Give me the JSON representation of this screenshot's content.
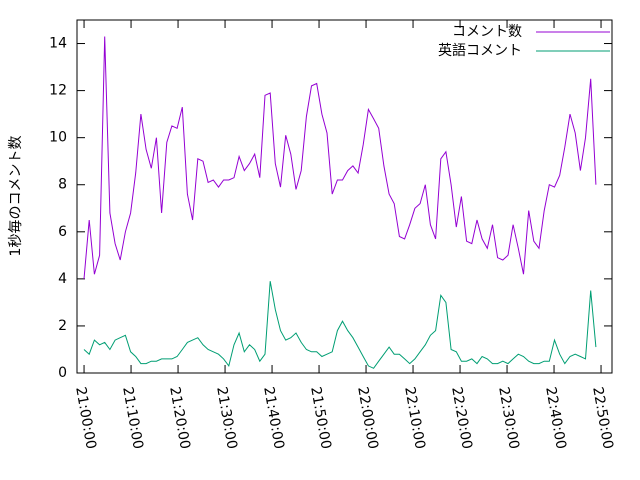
{
  "chart_data": {
    "type": "line",
    "y_label": "1秒毎のコメント数",
    "x": [
      "21:00:00",
      "21:01:06",
      "21:02:12",
      "21:03:18",
      "21:04:24",
      "21:05:30",
      "21:06:36",
      "21:07:42",
      "21:08:48",
      "21:09:54",
      "21:11:00",
      "21:12:06",
      "21:13:12",
      "21:14:18",
      "21:15:24",
      "21:16:30",
      "21:17:36",
      "21:18:42",
      "21:19:48",
      "21:20:54",
      "21:22:00",
      "21:23:06",
      "21:24:12",
      "21:25:18",
      "21:26:24",
      "21:27:30",
      "21:28:36",
      "21:29:42",
      "21:30:48",
      "21:31:54",
      "21:33:00",
      "21:34:06",
      "21:35:12",
      "21:36:18",
      "21:37:24",
      "21:38:30",
      "21:39:36",
      "21:40:42",
      "21:41:48",
      "21:42:54",
      "21:44:00",
      "21:45:06",
      "21:46:12",
      "21:47:18",
      "21:48:24",
      "21:49:30",
      "21:50:36",
      "21:51:42",
      "21:52:48",
      "21:53:54",
      "21:55:00",
      "21:56:06",
      "21:57:12",
      "21:58:18",
      "21:59:24",
      "22:00:30",
      "22:01:36",
      "22:02:42",
      "22:03:48",
      "22:04:54",
      "22:06:00",
      "22:07:06",
      "22:08:12",
      "22:09:18",
      "22:10:24",
      "22:11:30",
      "22:12:36",
      "22:13:42",
      "22:14:48",
      "22:15:54",
      "22:17:00",
      "22:18:06",
      "22:19:12",
      "22:20:18",
      "22:21:24",
      "22:22:30",
      "22:23:36",
      "22:24:42",
      "22:25:48",
      "22:26:54",
      "22:28:00",
      "22:29:06",
      "22:30:12",
      "22:31:18",
      "22:32:24",
      "22:33:30",
      "22:34:36",
      "22:35:42",
      "22:36:48",
      "22:37:54",
      "22:39:00",
      "22:40:06",
      "22:41:12",
      "22:42:18",
      "22:43:24",
      "22:44:30",
      "22:45:36",
      "22:46:42",
      "22:47:48",
      "22:48:54"
    ],
    "series": [
      {
        "name": "コメント数",
        "color": "#9400d3",
        "values": [
          4.0,
          6.5,
          4.2,
          5.0,
          14.3,
          6.8,
          5.5,
          4.8,
          6.0,
          6.8,
          8.5,
          11.0,
          9.5,
          8.7,
          10.0,
          6.8,
          9.8,
          10.5,
          10.4,
          11.3,
          7.6,
          6.5,
          9.1,
          9.0,
          8.1,
          8.2,
          7.9,
          8.2,
          8.2,
          8.3,
          9.2,
          8.6,
          8.9,
          9.3,
          8.3,
          11.8,
          11.9,
          8.9,
          7.9,
          10.1,
          9.3,
          7.8,
          8.6,
          10.9,
          12.2,
          12.3,
          11.0,
          10.2,
          7.6,
          8.2,
          8.2,
          8.6,
          8.8,
          8.5,
          9.7,
          11.2,
          10.8,
          10.4,
          8.8,
          7.6,
          7.2,
          5.8,
          5.7,
          6.3,
          7.0,
          7.2,
          8.0,
          6.3,
          5.7,
          9.1,
          9.4,
          8.0,
          6.2,
          7.5,
          5.6,
          5.5,
          6.5,
          5.7,
          5.3,
          6.3,
          4.9,
          4.8,
          5.0,
          6.3,
          5.3,
          4.2,
          6.9,
          5.6,
          5.3,
          6.9,
          8.0,
          7.9,
          8.4,
          9.6,
          11.0,
          10.2,
          8.6,
          10.0,
          12.5,
          8.0
        ]
      },
      {
        "name": "英語コメント",
        "color": "#009e73",
        "values": [
          1.0,
          0.8,
          1.4,
          1.2,
          1.3,
          1.0,
          1.4,
          1.5,
          1.6,
          0.9,
          0.7,
          0.4,
          0.4,
          0.5,
          0.5,
          0.6,
          0.6,
          0.6,
          0.7,
          1.0,
          1.3,
          1.4,
          1.5,
          1.2,
          1.0,
          0.9,
          0.8,
          0.6,
          0.3,
          1.2,
          1.7,
          0.9,
          1.2,
          1.0,
          0.5,
          0.8,
          3.9,
          2.7,
          1.8,
          1.4,
          1.5,
          1.7,
          1.3,
          1.0,
          0.9,
          0.9,
          0.7,
          0.8,
          0.9,
          1.8,
          2.2,
          1.8,
          1.5,
          1.1,
          0.7,
          0.3,
          0.2,
          0.5,
          0.8,
          1.1,
          0.8,
          0.8,
          0.6,
          0.4,
          0.6,
          0.9,
          1.2,
          1.6,
          1.8,
          3.3,
          3.0,
          1.0,
          0.9,
          0.5,
          0.5,
          0.6,
          0.4,
          0.7,
          0.6,
          0.4,
          0.4,
          0.5,
          0.4,
          0.6,
          0.8,
          0.7,
          0.5,
          0.4,
          0.4,
          0.5,
          0.5,
          1.4,
          0.8,
          0.4,
          0.7,
          0.8,
          0.7,
          0.6,
          3.5,
          1.1
        ]
      }
    ],
    "xlim": [
      "20:58:30",
      "22:52:20"
    ],
    "xticks": [
      "21:00:00",
      "21:10:00",
      "21:20:00",
      "21:30:00",
      "21:40:00",
      "21:50:00",
      "22:00:00",
      "22:10:00",
      "22:20:00",
      "22:30:00",
      "22:40:00",
      "22:50:00"
    ],
    "ylim": [
      0,
      15
    ],
    "yticks": [
      0,
      2,
      4,
      6,
      8,
      10,
      12,
      14
    ],
    "legend": "top-right",
    "grid": false
  }
}
